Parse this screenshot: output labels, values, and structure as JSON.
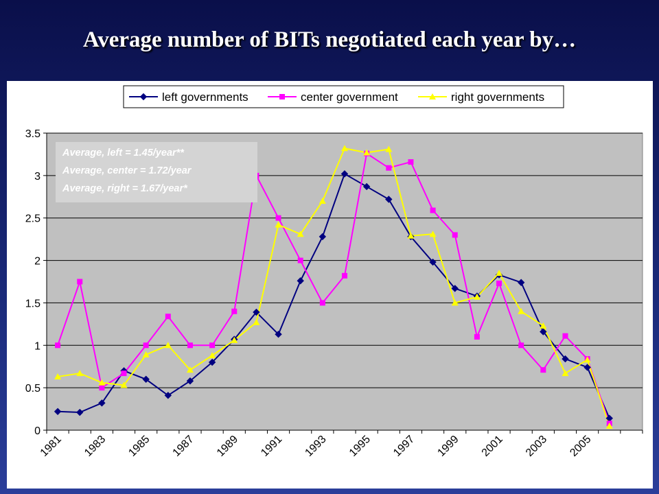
{
  "slide": {
    "title": "Average number of BITs negotiated each year by…"
  },
  "chart_data": {
    "type": "line",
    "title": "",
    "xlabel": "",
    "ylabel": "",
    "ylim": [
      0,
      3.5
    ],
    "yticks": [
      "0",
      "0.5",
      "1",
      "1.5",
      "2",
      "2.5",
      "3",
      "3.5"
    ],
    "x": [
      1981,
      1982,
      1983,
      1984,
      1985,
      1986,
      1987,
      1988,
      1989,
      1990,
      1991,
      1992,
      1993,
      1994,
      1995,
      1996,
      1997,
      1998,
      1999,
      2000,
      2001,
      2002,
      2003,
      2004,
      2005,
      2006,
      2007
    ],
    "xtick_labels": [
      "1981",
      "1983",
      "1985",
      "1987",
      "1989",
      "1991",
      "1993",
      "1995",
      "1997",
      "1999",
      "2001",
      "2003",
      "2005"
    ],
    "grid": "horizontal",
    "legend_position": "top",
    "series": [
      {
        "name": "left governments",
        "color": "#000080",
        "marker": "diamond",
        "values": [
          0.22,
          0.21,
          0.32,
          0.7,
          0.6,
          0.41,
          0.58,
          0.8,
          1.07,
          1.39,
          1.13,
          1.76,
          2.28,
          3.02,
          2.87,
          2.72,
          2.28,
          1.98,
          1.67,
          1.58,
          1.83,
          1.74,
          1.16,
          0.84,
          0.74,
          0.14,
          null
        ]
      },
      {
        "name": "center government",
        "color": "#ff00ff",
        "marker": "square",
        "values": [
          1.0,
          1.75,
          0.5,
          0.67,
          1.0,
          1.34,
          1.0,
          1.0,
          1.4,
          3.0,
          2.5,
          2.0,
          1.5,
          1.82,
          3.26,
          3.09,
          3.16,
          2.59,
          2.3,
          1.1,
          1.73,
          1.0,
          0.71,
          1.11,
          0.84,
          0.08,
          null
        ]
      },
      {
        "name": "right governments",
        "color": "#ffff00",
        "marker": "triangle",
        "values": [
          0.63,
          0.67,
          0.56,
          0.53,
          0.89,
          1.0,
          0.71,
          0.88,
          1.06,
          1.27,
          2.42,
          2.31,
          2.7,
          3.32,
          3.27,
          3.31,
          2.29,
          2.31,
          1.5,
          1.57,
          1.85,
          1.4,
          1.23,
          0.67,
          0.83,
          0.05,
          null
        ]
      }
    ],
    "annotations": [
      "Average, left = 1.45/year**",
      "Average, center = 1.72/year",
      "Average, right = 1.67/year*"
    ]
  }
}
